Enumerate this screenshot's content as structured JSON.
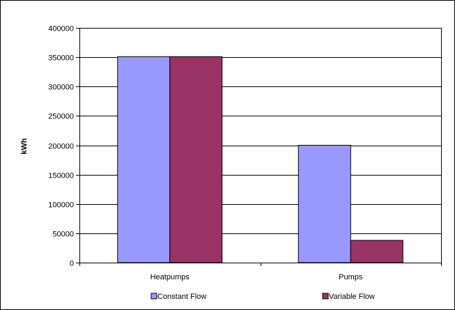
{
  "chart_data": {
    "type": "bar",
    "categories": [
      "Heatpumps",
      "Pumps"
    ],
    "series": [
      {
        "name": "Constant Flow",
        "values": [
          351000,
          200000
        ],
        "color": "#9999ff"
      },
      {
        "name": "Variable Flow",
        "values": [
          351000,
          38000
        ],
        "color": "#993366"
      }
    ],
    "ylim": [
      0,
      400000
    ],
    "ylabel": "kWh",
    "xlabel": "",
    "y_ticks": [
      0,
      50000,
      100000,
      150000,
      200000,
      250000,
      300000,
      350000,
      400000
    ],
    "y_tick_labels": [
      "0",
      "50000",
      "100000",
      "150000",
      "200000",
      "250000",
      "300000",
      "350000",
      "400000"
    ],
    "grid": true,
    "legend_position": "bottom"
  }
}
